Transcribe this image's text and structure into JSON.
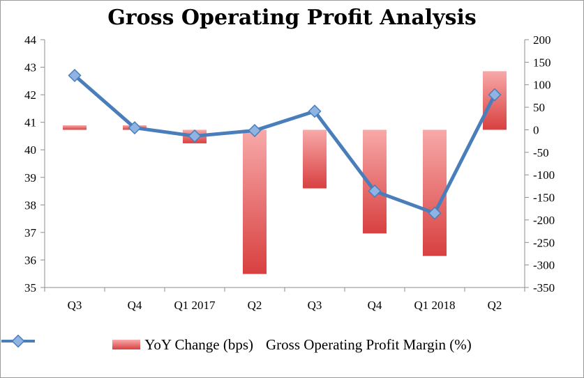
{
  "chart_data": {
    "type": "bar+line",
    "title": "Gross Operating Profit Analysis",
    "categories": [
      "Q3",
      "Q4",
      "Q1 2017",
      "Q2",
      "Q3",
      "Q4",
      "Q1 2018",
      "Q2"
    ],
    "series": [
      {
        "name": "YoY Change (bps)",
        "type": "bar",
        "axis": "right",
        "values": [
          10,
          10,
          -30,
          -320,
          -130,
          -230,
          -280,
          130
        ],
        "color": "#e05050"
      },
      {
        "name": "Gross Operating Profit Margin (%)",
        "type": "line",
        "axis": "left",
        "values": [
          42.7,
          40.8,
          40.5,
          40.7,
          41.4,
          38.5,
          37.7,
          42.0
        ],
        "color": "#4a7ebb"
      }
    ],
    "y_left": {
      "min": 35,
      "max": 44,
      "step": 1
    },
    "y_right": {
      "min": -350,
      "max": 200,
      "step": 50
    },
    "grid": false,
    "legend_position": "bottom"
  }
}
